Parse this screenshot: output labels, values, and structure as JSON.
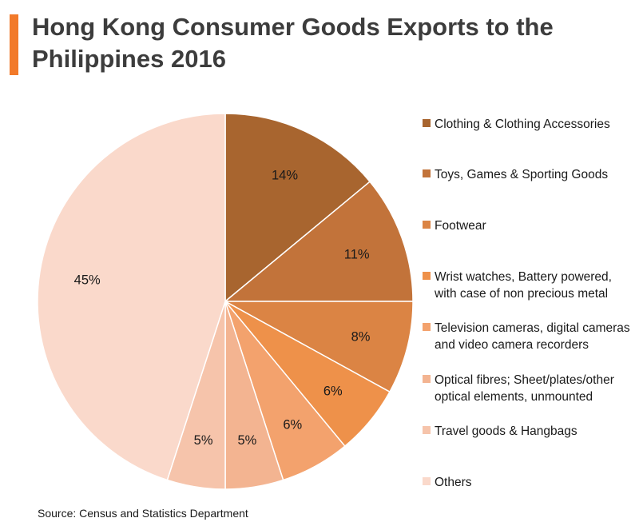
{
  "title": "Hong Kong Consumer Goods Exports to the Philippines 2016",
  "source": "Source: Census and Statistics Department",
  "accent_color": "#f27a2a",
  "chart_data": {
    "type": "pie",
    "title": "Hong Kong Consumer Goods Exports to the Philippines 2016",
    "start_angle_deg": 0,
    "direction": "clockwise",
    "slices": [
      {
        "label": "Clothing & Clothing Accessories",
        "value": 14,
        "display": "14%",
        "color": "#a8652f"
      },
      {
        "label": "Toys, Games & Sporting Goods",
        "value": 11,
        "display": "11%",
        "color": "#c2733a"
      },
      {
        "label": "Footwear",
        "value": 8,
        "display": "8%",
        "color": "#db8444"
      },
      {
        "label": "Wrist watches, Battery powered, with case of non precious metal",
        "value": 6,
        "display": "6%",
        "color": "#ee914a"
      },
      {
        "label": "Television cameras, digital cameras and video camera recorders",
        "value": 6,
        "display": "6%",
        "color": "#f3a26d"
      },
      {
        "label": "Optical fibres; Sheet/plates/other optical elements, unmounted",
        "value": 5,
        "display": "5%",
        "color": "#f3b491"
      },
      {
        "label": "Travel goods & Hangbags",
        "value": 5,
        "display": "5%",
        "color": "#f6c4ab"
      },
      {
        "label": "Others",
        "value": 45,
        "display": "45%",
        "color": "#fad9cb"
      }
    ]
  }
}
